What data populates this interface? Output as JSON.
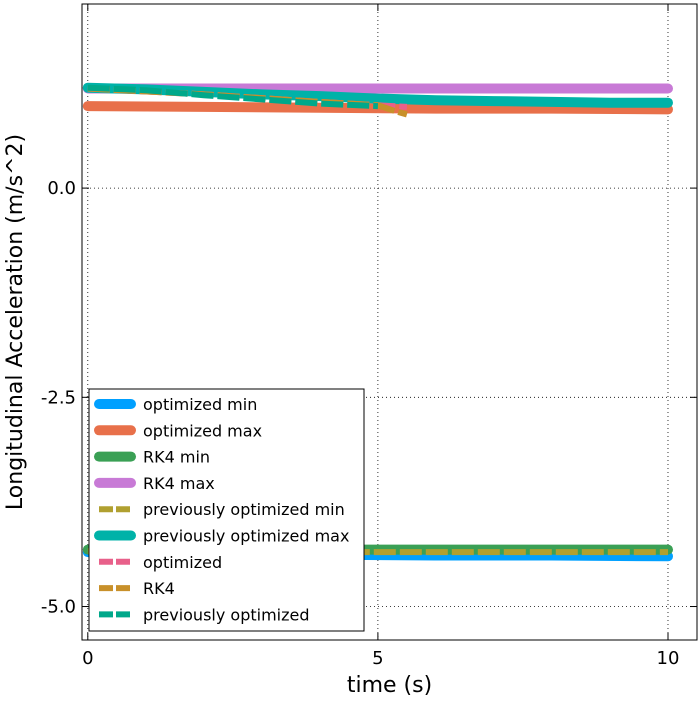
{
  "chart_data": {
    "type": "line",
    "title": "",
    "xlabel": "time (s)",
    "ylabel": "Longitudinal Acceleration (m/s^2)",
    "xlim": [
      -0.1,
      10.5
    ],
    "ylim": [
      -5.4,
      2.2
    ],
    "grid": true,
    "legend_placement": "lower-left",
    "x_ticks": [
      {
        "value": 0,
        "label": "0"
      },
      {
        "value": 5,
        "label": "5"
      },
      {
        "value": 10,
        "label": "10"
      }
    ],
    "y_ticks": [
      {
        "value": 0,
        "label": "0.0"
      },
      {
        "value": -2.5,
        "label": "-2.5"
      },
      {
        "value": -5,
        "label": "-5.0"
      }
    ],
    "series": [
      {
        "name": "optimized min",
        "color": "#00a0ff",
        "style": "solid",
        "x": [
          0,
          2,
          4,
          6,
          8,
          10
        ],
        "y": [
          -4.35,
          -4.37,
          -4.38,
          -4.39,
          -4.39,
          -4.4
        ]
      },
      {
        "name": "optimized max",
        "color": "#e8704a",
        "style": "solid",
        "x": [
          0,
          2,
          4,
          6,
          8,
          10
        ],
        "y": [
          0.98,
          0.97,
          0.96,
          0.95,
          0.95,
          0.94
        ]
      },
      {
        "name": "RK4 min",
        "color": "#3aa055",
        "style": "solid",
        "x": [
          0,
          2,
          4,
          6,
          8,
          10
        ],
        "y": [
          -4.32,
          -4.32,
          -4.32,
          -4.32,
          -4.32,
          -4.32
        ]
      },
      {
        "name": "RK4 max",
        "color": "#c87ad6",
        "style": "solid",
        "x": [
          0,
          2,
          4,
          6,
          8,
          10
        ],
        "y": [
          1.19,
          1.19,
          1.19,
          1.19,
          1.19,
          1.19
        ]
      },
      {
        "name": "previously optimized min",
        "color": "#b0a030",
        "style": "dashed",
        "x": [
          0,
          2,
          4,
          6,
          8,
          10
        ],
        "y": [
          -4.34,
          -4.35,
          -4.35,
          -4.35,
          -4.35,
          -4.35
        ]
      },
      {
        "name": "previously optimized max",
        "color": "#00b2a8",
        "style": "solid",
        "x": [
          0,
          1,
          2,
          3,
          4,
          5,
          6,
          7,
          8,
          9,
          10
        ],
        "y": [
          1.2,
          1.18,
          1.15,
          1.12,
          1.1,
          1.07,
          1.05,
          1.04,
          1.03,
          1.02,
          1.02
        ]
      },
      {
        "name": "optimized",
        "color": "#e8608a",
        "style": "dashed",
        "x": [
          0,
          2,
          4,
          5,
          5.5
        ],
        "y": [
          1.19,
          1.12,
          1.03,
          0.99,
          0.97
        ]
      },
      {
        "name": "RK4",
        "color": "#c8902a",
        "style": "dashed",
        "x": [
          0,
          2,
          4,
          5,
          5.3,
          5.5
        ],
        "y": [
          1.19,
          1.12,
          1.03,
          0.99,
          0.92,
          0.88
        ]
      },
      {
        "name": "previously optimized",
        "color": "#00a88a",
        "style": "dashed",
        "x": [
          0,
          1,
          2,
          3,
          4,
          5
        ],
        "y": [
          1.2,
          1.17,
          1.11,
          1.06,
          1.01,
          0.98
        ]
      }
    ]
  }
}
